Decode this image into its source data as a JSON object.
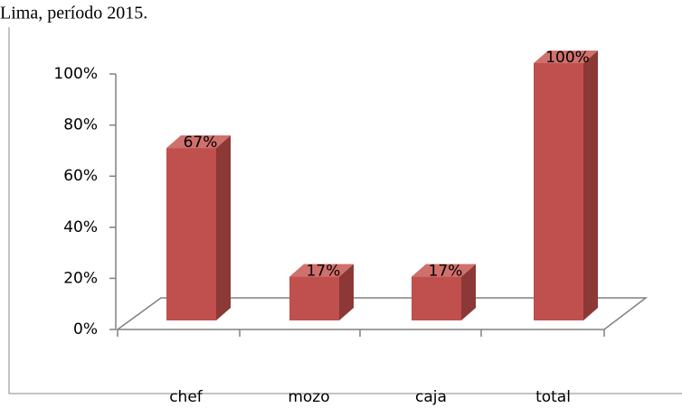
{
  "chart_data": {
    "type": "bar3d",
    "title": "Lima, período 2015.",
    "categories": [
      "chef",
      "mozo",
      "caja",
      "total"
    ],
    "values": [
      67,
      17,
      17,
      100
    ],
    "value_labels": [
      "67%",
      "17%",
      "17%",
      "100%"
    ],
    "color": "#c0504d",
    "ylim": [
      0,
      100
    ],
    "yticks": [
      {
        "value": 0,
        "label": "0%"
      },
      {
        "value": 20,
        "label": "20%"
      },
      {
        "value": 40,
        "label": "40%"
      },
      {
        "value": 60,
        "label": "60%"
      },
      {
        "value": 80,
        "label": "80%"
      },
      {
        "value": 100,
        "label": "100%"
      }
    ]
  }
}
